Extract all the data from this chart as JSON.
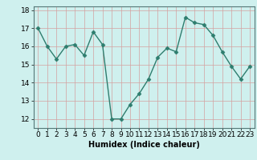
{
  "x": [
    0,
    1,
    2,
    3,
    4,
    5,
    6,
    7,
    8,
    9,
    10,
    11,
    12,
    13,
    14,
    15,
    16,
    17,
    18,
    19,
    20,
    21,
    22,
    23
  ],
  "y": [
    17,
    16,
    15.3,
    16,
    16.1,
    15.5,
    16.8,
    16.1,
    12,
    12,
    12.8,
    13.4,
    14.2,
    15.4,
    15.9,
    15.7,
    17.6,
    17.3,
    17.2,
    16.6,
    15.7,
    14.9,
    14.2,
    14.9
  ],
  "line_color": "#2e7d6e",
  "marker": "D",
  "marker_size": 2.5,
  "bg_color": "#cff0ee",
  "grid_color": "#d4a0a0",
  "xlabel": "Humidex (Indice chaleur)",
  "ylim": [
    11.5,
    18.2
  ],
  "xlim": [
    -0.5,
    23.5
  ],
  "yticks": [
    12,
    13,
    14,
    15,
    16,
    17,
    18
  ],
  "xticks": [
    0,
    1,
    2,
    3,
    4,
    5,
    6,
    7,
    8,
    9,
    10,
    11,
    12,
    13,
    14,
    15,
    16,
    17,
    18,
    19,
    20,
    21,
    22,
    23
  ],
  "xlabel_fontsize": 7,
  "tick_fontsize": 6.5
}
